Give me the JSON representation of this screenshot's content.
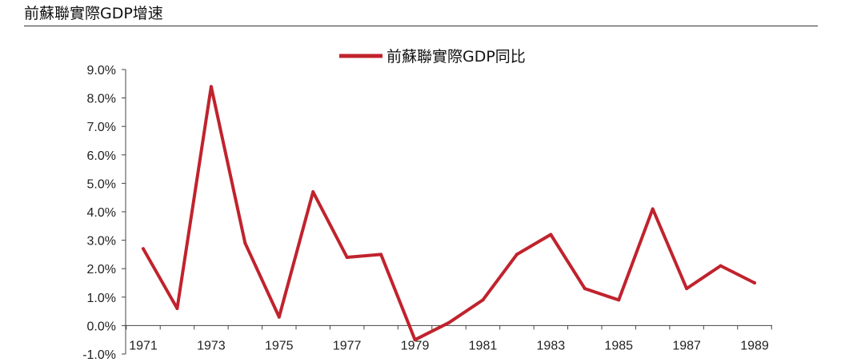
{
  "header": {
    "title": "前蘇聯實際GDP增速"
  },
  "colors": {
    "series": "#C0232D",
    "axis": "#444444",
    "rule": "#333333"
  },
  "chart_data": {
    "type": "line",
    "title": "",
    "xlabel": "",
    "ylabel": "",
    "x": [
      1971,
      1972,
      1973,
      1974,
      1975,
      1976,
      1977,
      1978,
      1979,
      1980,
      1981,
      1982,
      1983,
      1984,
      1985,
      1986,
      1987,
      1988,
      1989
    ],
    "x_tick_labels": [
      "1971",
      "1973",
      "1975",
      "1977",
      "1979",
      "1981",
      "1983",
      "1985",
      "1987",
      "1989"
    ],
    "y_tick_labels": [
      "9.0%",
      "8.0%",
      "7.0%",
      "6.0%",
      "5.0%",
      "4.0%",
      "3.0%",
      "2.0%",
      "1.0%",
      "0.0%",
      "-1.0%"
    ],
    "ylim": [
      -1.0,
      9.0
    ],
    "grid": false,
    "legend_position": "top-center",
    "series": [
      {
        "name": "前蘇聯實際GDP同比",
        "values": [
          2.7,
          0.6,
          8.4,
          2.9,
          0.3,
          4.7,
          2.4,
          2.5,
          -0.5,
          0.1,
          0.9,
          2.5,
          3.2,
          1.3,
          0.9,
          4.1,
          1.3,
          2.1,
          1.5
        ]
      }
    ]
  }
}
